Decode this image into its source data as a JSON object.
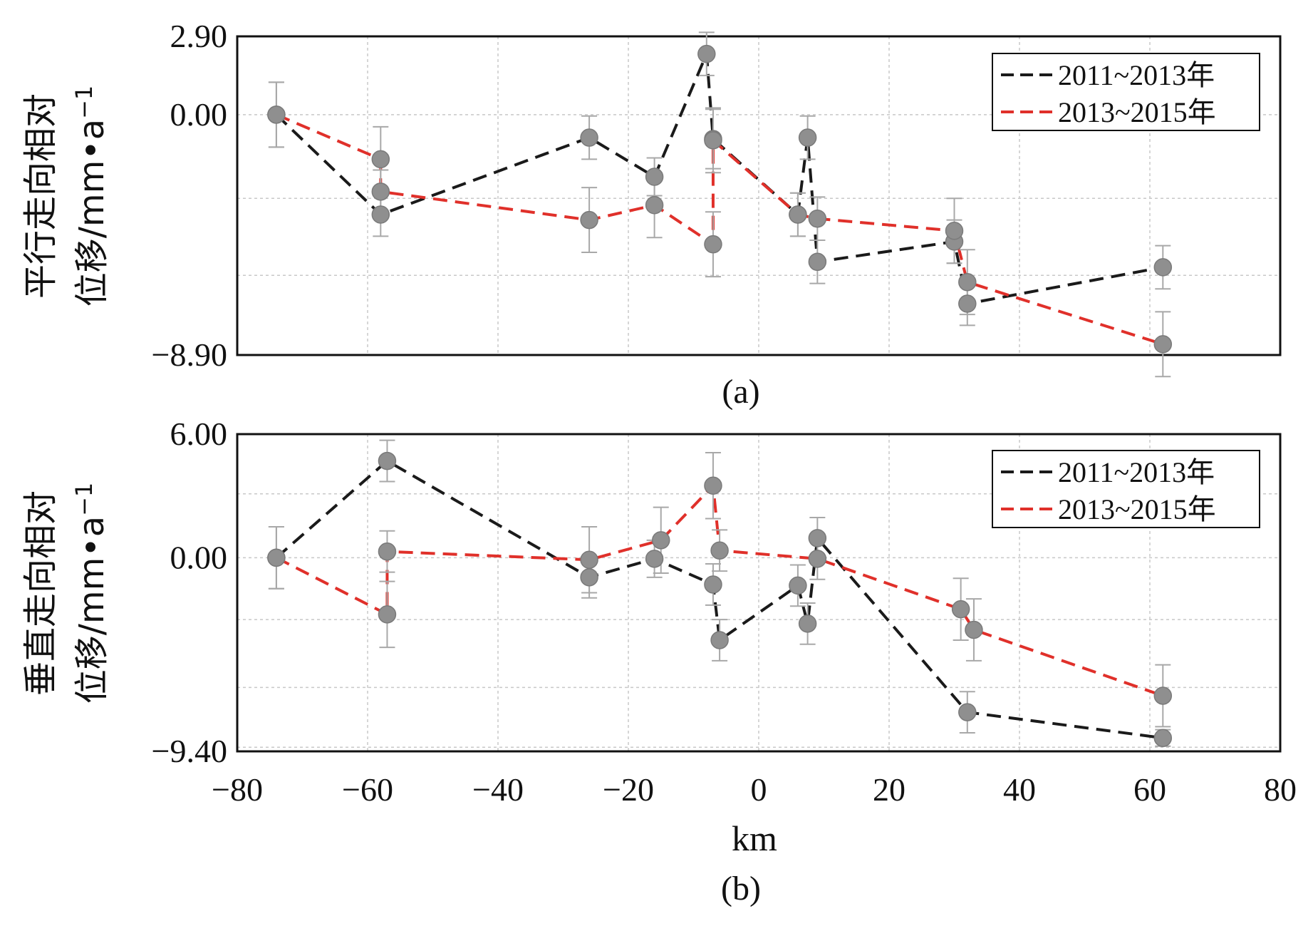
{
  "chart_data": [
    {
      "type": "line",
      "panel_label": "(a)",
      "ylabel_line1": "平行走向相对",
      "ylabel_line2": "位移/mm•a",
      "ylabel_exponent": "−1",
      "xlim": [
        -80,
        80
      ],
      "ylim": [
        -8.9,
        2.9
      ],
      "y_ticks": [
        2.9,
        0.0,
        -8.9
      ],
      "y_tick_labels": [
        "2.90",
        "0.00",
        "−8.90"
      ],
      "y_grid": [
        2.9,
        0.0,
        -3.1,
        -5.95,
        -8.9
      ],
      "x_grid": [
        -80,
        -60,
        -40,
        -20,
        0,
        20,
        40,
        60,
        80
      ],
      "series": [
        {
          "name": "2011~2013年",
          "color": "#1a1a1a",
          "points": [
            {
              "x": -74,
              "y": 0.0,
              "err": 1.2
            },
            {
              "x": -58,
              "y": -3.7,
              "err": 0.8
            },
            {
              "x": -26,
              "y": -0.85,
              "err": 0.8
            },
            {
              "x": -16,
              "y": -2.3,
              "err": 0.7
            },
            {
              "x": -8,
              "y": 2.25,
              "err": 0.8
            },
            {
              "x": -7,
              "y": -0.9,
              "err": 1.1
            },
            {
              "x": 6,
              "y": -3.7,
              "err": 0.8
            },
            {
              "x": 7.5,
              "y": -0.85,
              "err": 0.8
            },
            {
              "x": 9,
              "y": -5.45,
              "err": 0.8
            },
            {
              "x": 30,
              "y": -4.7,
              "err": 0.8
            },
            {
              "x": 32,
              "y": -7.0,
              "err": 0.8
            },
            {
              "x": 62,
              "y": -5.65,
              "err": 0.8
            }
          ]
        },
        {
          "name": "2013~2015年",
          "color": "#e0302a",
          "points": [
            {
              "x": -74,
              "y": 0.0,
              "err": 1.2
            },
            {
              "x": -58,
              "y": -1.65,
              "err": 1.2
            },
            {
              "x": -58,
              "y": -2.85,
              "err": 0.8
            },
            {
              "x": -26,
              "y": -3.9,
              "err": 1.2
            },
            {
              "x": -16,
              "y": -3.35,
              "err": 1.2
            },
            {
              "x": -7,
              "y": -4.8,
              "err": 1.2
            },
            {
              "x": -7,
              "y": -0.95,
              "err": 1.2
            },
            {
              "x": 6,
              "y": -3.7,
              "err": 0.8
            },
            {
              "x": 9,
              "y": -3.85,
              "err": 0.8
            },
            {
              "x": 30,
              "y": -4.3,
              "err": 1.2
            },
            {
              "x": 32,
              "y": -6.2,
              "err": 1.2
            },
            {
              "x": 62,
              "y": -8.5,
              "err": 1.2
            }
          ]
        }
      ]
    },
    {
      "type": "line",
      "panel_label": "(b)",
      "ylabel_line1": "垂直走向相对",
      "ylabel_line2": "位移/mm•a",
      "ylabel_exponent": "−1",
      "xlabel": "km",
      "xlim": [
        -80,
        80
      ],
      "ylim": [
        -9.4,
        6.0
      ],
      "y_ticks": [
        6.0,
        0.0,
        -9.4
      ],
      "y_tick_labels": [
        "6.00",
        "0.00",
        "−9.40"
      ],
      "x_ticks": [
        -80,
        -60,
        -40,
        -20,
        0,
        20,
        40,
        60,
        80
      ],
      "x_tick_labels": [
        "−80",
        "−60",
        "−40",
        "−20",
        "0",
        "20",
        "40",
        "60",
        "80"
      ],
      "y_grid": [
        6.0,
        3.1,
        0.0,
        -3.0,
        -6.3,
        -9.2
      ],
      "x_grid": [
        -80,
        -60,
        -40,
        -20,
        0,
        20,
        40,
        60,
        80
      ],
      "series": [
        {
          "name": "2011~2013年",
          "color": "#1a1a1a",
          "points": [
            {
              "x": -74,
              "y": 0.0,
              "err": 1.5
            },
            {
              "x": -57,
              "y": 4.7,
              "err": 1.0
            },
            {
              "x": -26,
              "y": -0.95,
              "err": 1.0
            },
            {
              "x": -16,
              "y": -0.05,
              "err": 0.9
            },
            {
              "x": -7,
              "y": -1.3,
              "err": 1.0
            },
            {
              "x": -6,
              "y": -4.0,
              "err": 1.0
            },
            {
              "x": 6,
              "y": -1.35,
              "err": 1.0
            },
            {
              "x": 7.5,
              "y": -3.2,
              "err": 1.0
            },
            {
              "x": 9,
              "y": 0.95,
              "err": 1.0
            },
            {
              "x": 32,
              "y": -7.5,
              "err": 1.0
            },
            {
              "x": 62,
              "y": -8.75,
              "err": 0.4
            }
          ]
        },
        {
          "name": "2013~2015年",
          "color": "#e0302a",
          "points": [
            {
              "x": -74,
              "y": 0.0,
              "err": 1.5
            },
            {
              "x": -57,
              "y": -2.75,
              "err": 1.6
            },
            {
              "x": -57,
              "y": 0.3,
              "err": 1.0
            },
            {
              "x": -26,
              "y": -0.1,
              "err": 1.6
            },
            {
              "x": -15,
              "y": 0.85,
              "err": 1.6
            },
            {
              "x": -7,
              "y": 3.5,
              "err": 1.6
            },
            {
              "x": -6,
              "y": 0.35,
              "err": 1.0
            },
            {
              "x": 9,
              "y": -0.05,
              "err": 1.0
            },
            {
              "x": 31,
              "y": -2.5,
              "err": 1.5
            },
            {
              "x": 33,
              "y": -3.5,
              "err": 1.5
            },
            {
              "x": 62,
              "y": -6.7,
              "err": 1.5
            }
          ]
        }
      ]
    }
  ]
}
